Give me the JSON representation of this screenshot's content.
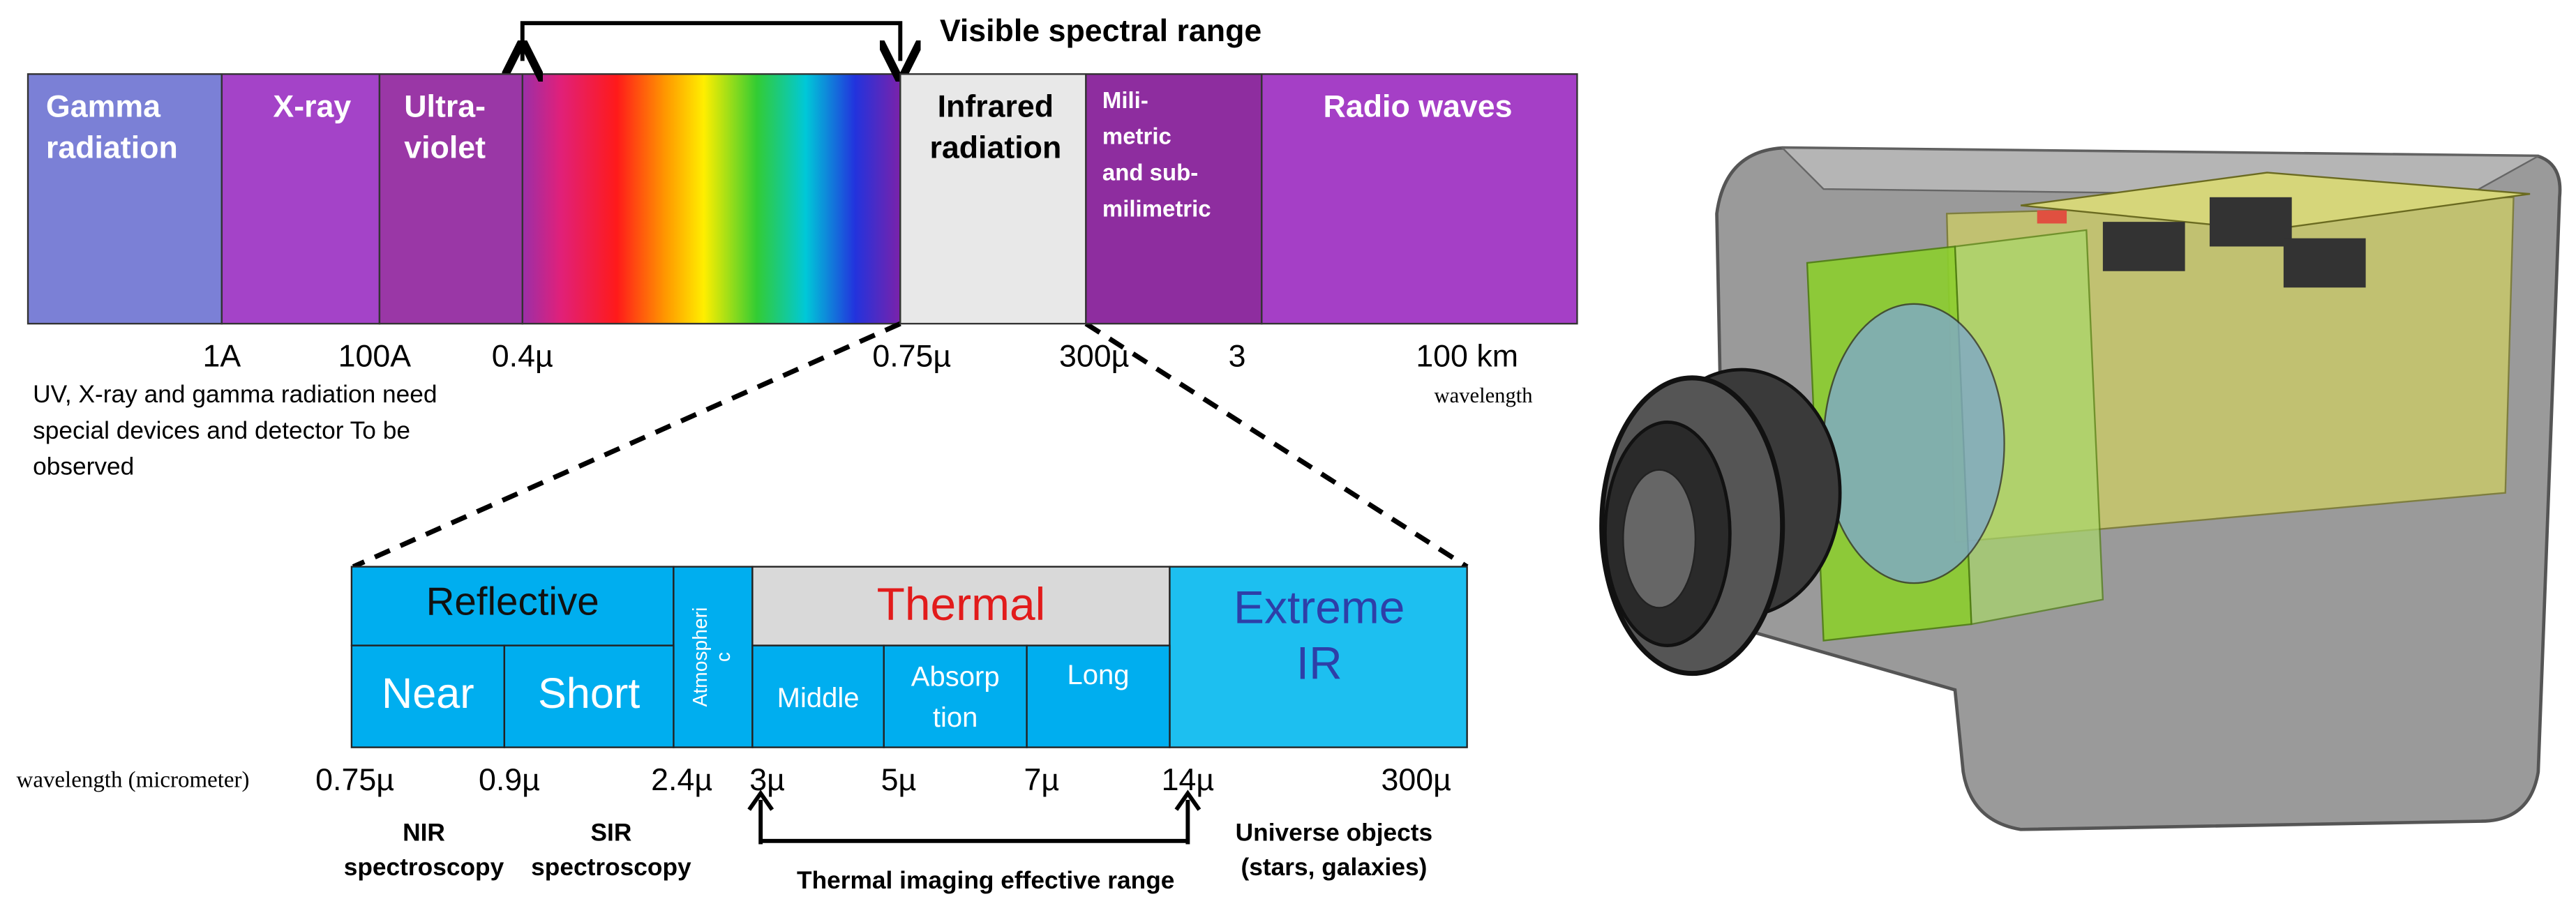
{
  "header": {
    "title": "Visible spectral range"
  },
  "spectrum": {
    "bands": [
      {
        "lines": [
          "Gamma",
          "radiation"
        ]
      },
      {
        "lines": [
          "X-ray"
        ]
      },
      {
        "lines": [
          "Ultra-",
          "violet"
        ]
      },
      {
        "lines": [
          "Infrared",
          "radiation"
        ]
      },
      {
        "lines": [
          "Mili-",
          "metric",
          "and sub-",
          "milimetric"
        ]
      },
      {
        "lines": [
          "Radio waves"
        ]
      }
    ],
    "scale": [
      "1A",
      "100A",
      "0.4µ",
      "0.75µ",
      "300µ",
      "3",
      "100 km"
    ],
    "axis_label": "wavelength",
    "note": [
      "UV, X-ray and gamma radiation need",
      "special devices and detector To  be",
      "observed"
    ]
  },
  "infrared": {
    "groups": [
      {
        "lines": [
          "Reflective"
        ]
      },
      {
        "lines": [
          "Atmospheri",
          "c"
        ]
      },
      {
        "lines": [
          "Thermal"
        ]
      },
      {
        "lines": [
          "Extreme",
          "IR"
        ]
      }
    ],
    "subbands": [
      {
        "lines": [
          "Near"
        ]
      },
      {
        "lines": [
          "Short"
        ]
      },
      {
        "lines": [
          "Middle"
        ]
      },
      {
        "lines": [
          "Absorp",
          "tion"
        ]
      },
      {
        "lines": [
          "Long"
        ]
      }
    ],
    "axis_label": "wavelength (micrometer)",
    "scale": [
      "0.75µ",
      "0.9µ",
      "2.4µ",
      "3µ",
      "5µ",
      "7µ",
      "14µ",
      "300µ"
    ],
    "uses": [
      {
        "lines": [
          "NIR",
          "spectroscopy"
        ]
      },
      {
        "lines": [
          "SIR",
          "spectroscopy"
        ]
      },
      {
        "lines": [
          "Thermal imaging effective range"
        ]
      },
      {
        "lines": [
          "Universe objects",
          "(stars, galaxies)"
        ]
      }
    ]
  }
}
